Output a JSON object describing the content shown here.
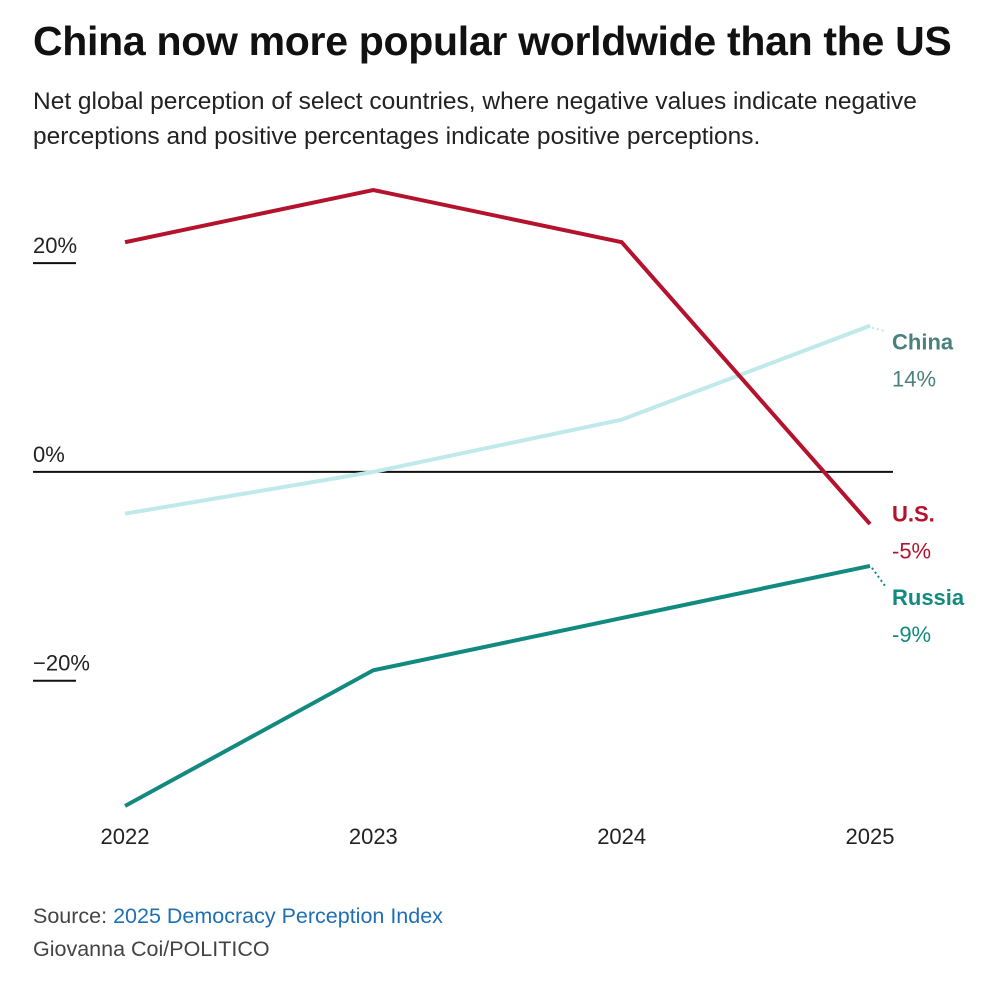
{
  "header": {
    "title": "China now more popular worldwide than the US",
    "subtitle": "Net global perception of select countries, where negative values indicate negative perceptions and positive percentages indicate positive perceptions."
  },
  "footer": {
    "source_prefix": "Source: ",
    "source_link": "2025 Democracy Perception Index",
    "credit": "Giovanna Coi/POLITICO"
  },
  "chart_data": {
    "type": "line",
    "title": "China now more popular worldwide than the US",
    "subtitle": "Net global perception of select countries, where negative values indicate negative perceptions and positive percentages indicate positive perceptions.",
    "categories": [
      "2022",
      "2023",
      "2024",
      "2025"
    ],
    "ylim": [
      -32,
      27
    ],
    "y_ticks": [
      {
        "value": 20,
        "label": "20%"
      },
      {
        "value": 0,
        "label": "0%"
      },
      {
        "value": -20,
        "label": "−20%"
      }
    ],
    "grid": false,
    "legend": "direct-labels-right",
    "series": [
      {
        "name": "U.S.",
        "color": "#b5122e",
        "values": [
          22,
          27,
          22,
          -5
        ],
        "end_label": "-5%",
        "label_value": -4
      },
      {
        "name": "China",
        "color": "#bfe9ea",
        "label_color": "#4a807d",
        "values": [
          -4,
          0,
          5,
          14
        ],
        "end_label": "14%",
        "label_value": 12.5
      },
      {
        "name": "Russia",
        "color": "#128a80",
        "values": [
          -32,
          -19,
          -14,
          -9
        ],
        "end_label": "-9%",
        "label_value": -12
      }
    ]
  }
}
